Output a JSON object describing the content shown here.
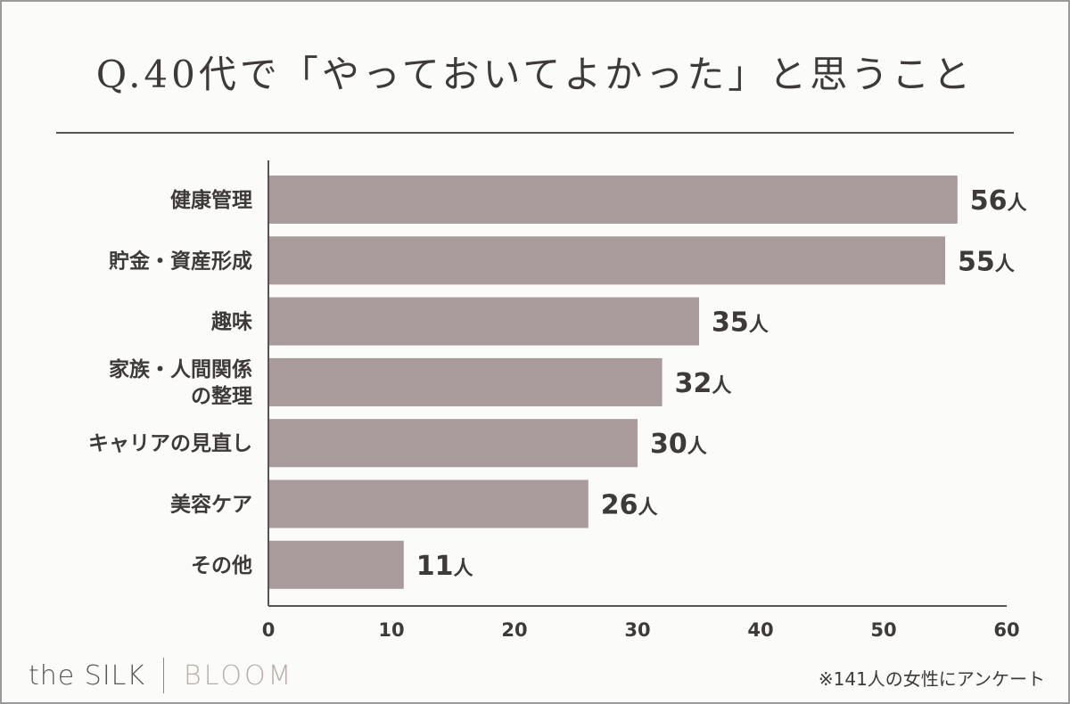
{
  "chart_data": {
    "type": "bar",
    "orientation": "horizontal",
    "title": "Q.40代で「やっておいてよかった」と思うこと",
    "categories": [
      [
        "健康管理"
      ],
      [
        "貯金・資産形成"
      ],
      [
        "趣味"
      ],
      [
        "家族・人間関係",
        "の整理"
      ],
      [
        "キャリアの見直し"
      ],
      [
        "美容ケア"
      ],
      [
        "その他"
      ]
    ],
    "values": [
      56,
      55,
      35,
      32,
      30,
      26,
      11
    ],
    "value_suffix": "人",
    "xlim": [
      0,
      60
    ],
    "xticks": [
      0,
      10,
      20,
      30,
      40,
      50,
      60
    ],
    "bar_color": "#a99a9c",
    "grid": false
  },
  "brand": {
    "name": "the SILK",
    "sub": "BLOOM"
  },
  "footnote": "※141人の女性にアンケート"
}
